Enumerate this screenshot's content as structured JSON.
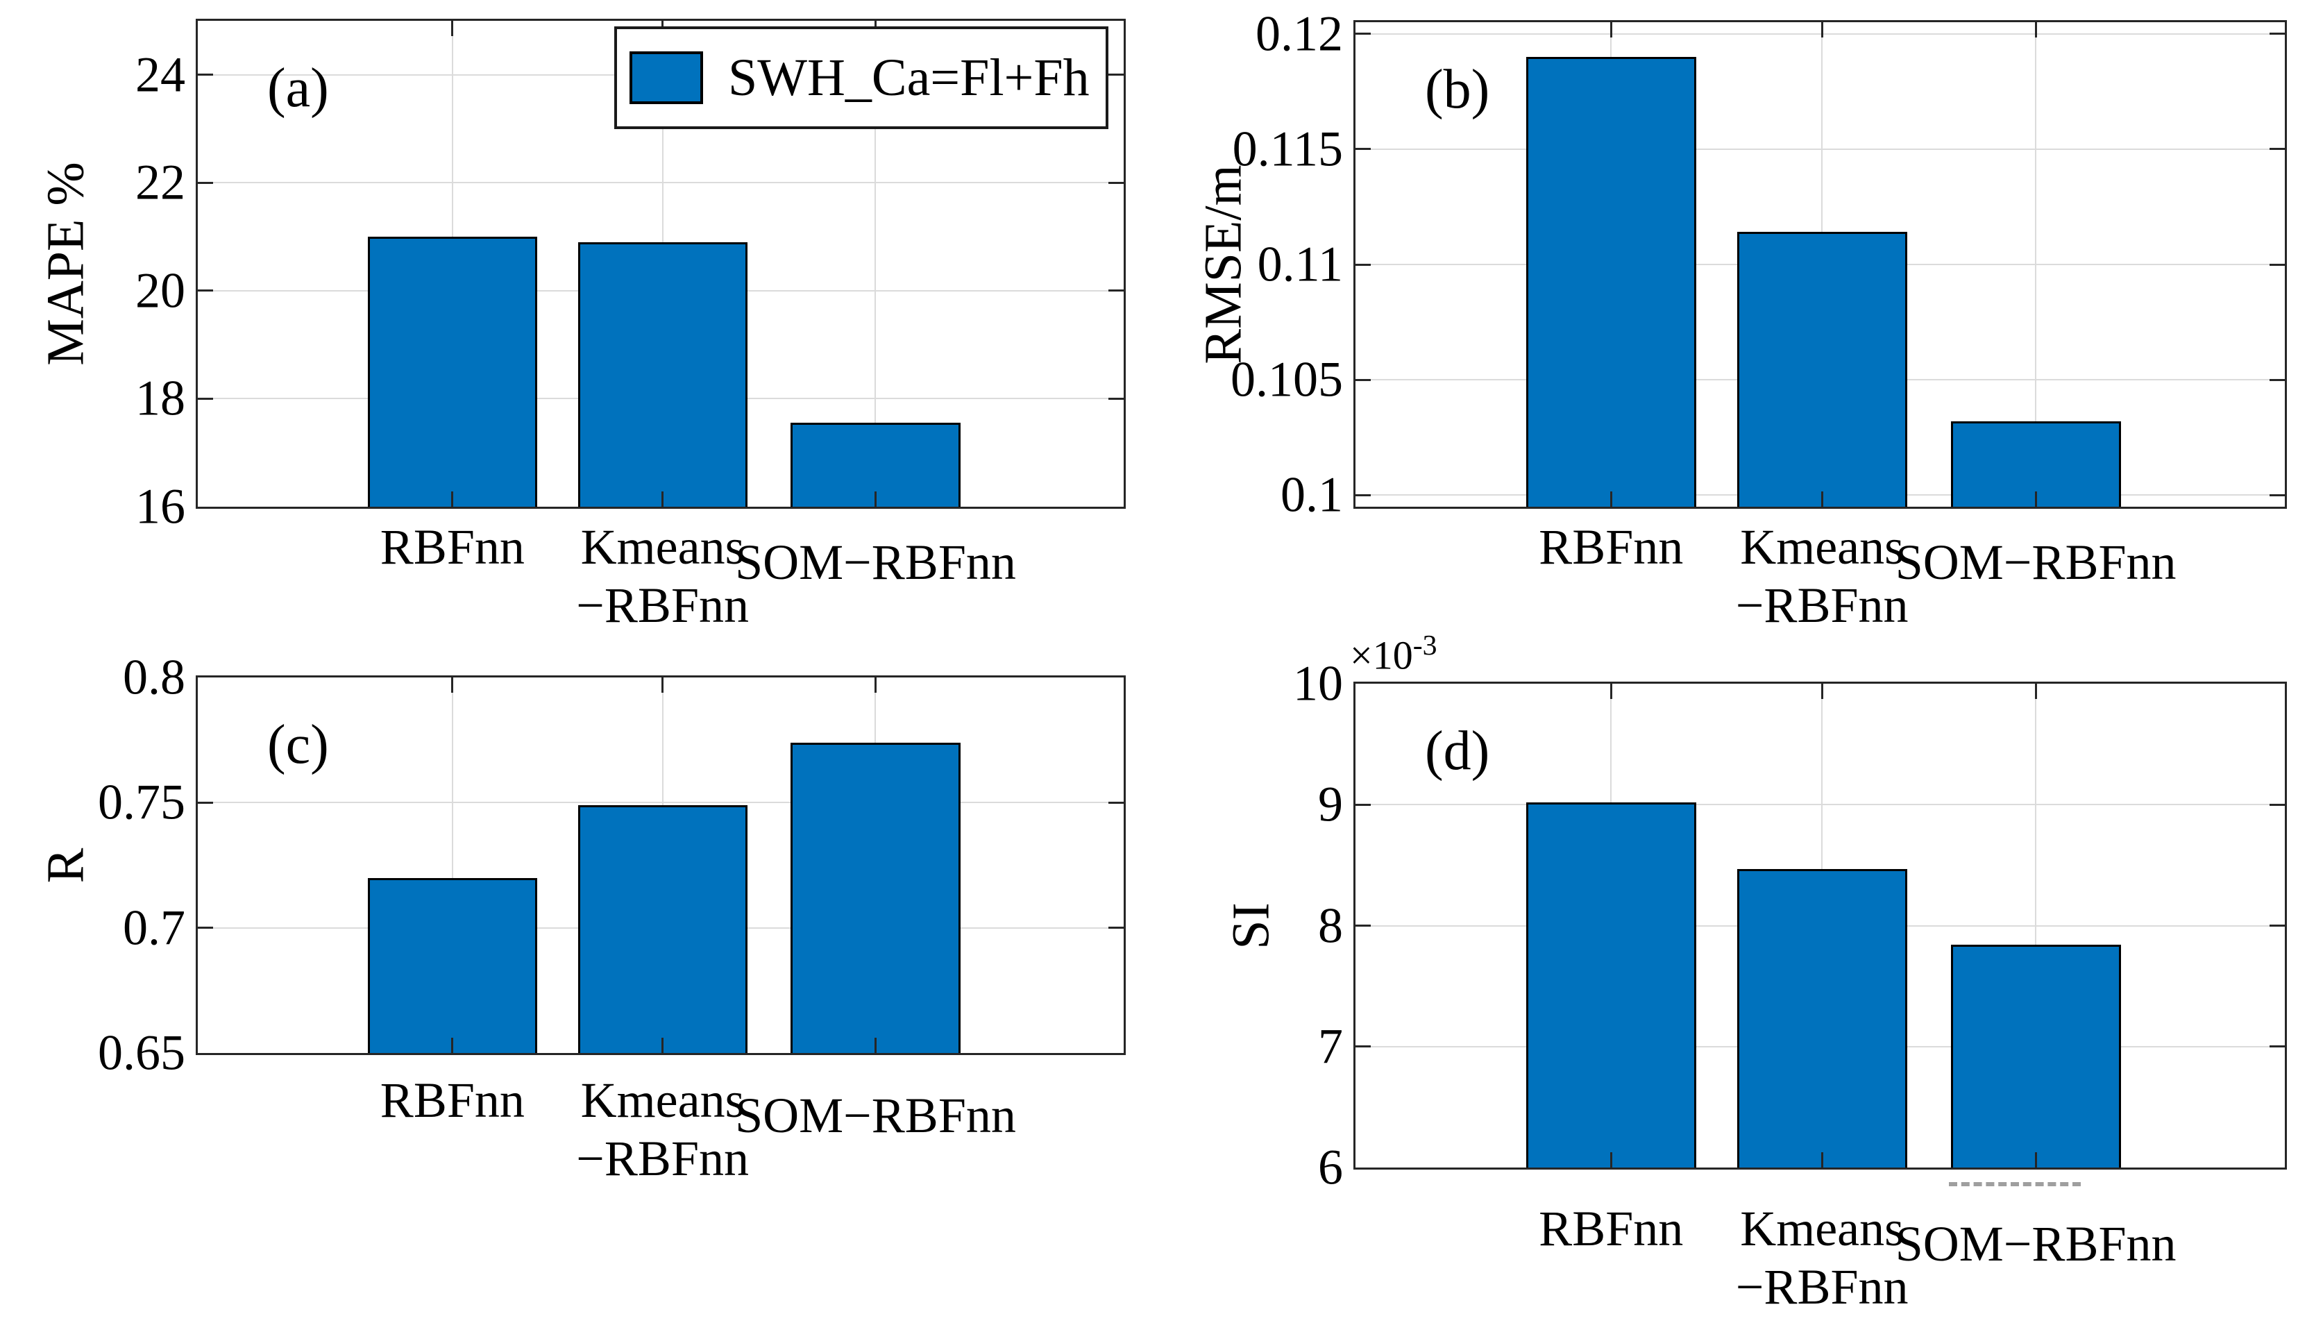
{
  "figure": {
    "background": "#ffffff",
    "bar_color": "#0072BD",
    "bar_edge_color": "#000000",
    "grid_color": "#DBDBDB",
    "axis_color": "#262626",
    "text_color": "#000000"
  },
  "legend": {
    "label": "SWH_Ca=Fl+Fh",
    "swatch_color": "#0072BD",
    "position": "top-right of panel (a)"
  },
  "categories": [
    "RBFnn",
    "Kmeans−RBFnn",
    "SOM−RBFnn"
  ],
  "category_tick_lines": [
    [
      "RBFnn"
    ],
    [
      "Kmeans",
      "−RBFnn"
    ],
    [
      "SOM−RBFnn"
    ]
  ],
  "chart_data": [
    {
      "type": "bar",
      "panel_label": "(a)",
      "ylabel": "MAPE %",
      "xlabel": "",
      "categories": [
        "RBFnn",
        "Kmeans−RBFnn",
        "SOM−RBFnn"
      ],
      "values": [
        21.0,
        20.9,
        17.56
      ],
      "ylim": [
        16,
        25
      ],
      "yticks": [
        {
          "value": 16,
          "label": "16"
        },
        {
          "value": 18,
          "label": "18"
        },
        {
          "value": 20,
          "label": "20"
        },
        {
          "value": 22,
          "label": "22"
        },
        {
          "value": 24,
          "label": "24"
        }
      ],
      "grid": true,
      "legend_entries": [
        "SWH_Ca=Fl+Fh"
      ]
    },
    {
      "type": "bar",
      "panel_label": "(b)",
      "ylabel": "RMSE/m",
      "xlabel": "",
      "categories": [
        "RBFnn",
        "Kmeans−RBFnn",
        "SOM−RBFnn"
      ],
      "values": [
        0.119,
        0.1114,
        0.1032
      ],
      "ylim": [
        0.0995,
        0.1205
      ],
      "yticks": [
        {
          "value": 0.1,
          "label": "0.1"
        },
        {
          "value": 0.105,
          "label": "0.105"
        },
        {
          "value": 0.11,
          "label": "0.11"
        },
        {
          "value": 0.115,
          "label": "0.115"
        },
        {
          "value": 0.12,
          "label": "0.12"
        }
      ],
      "grid": true
    },
    {
      "type": "bar",
      "panel_label": "(c)",
      "ylabel": "R",
      "xlabel": "",
      "categories": [
        "RBFnn",
        "Kmeans−RBFnn",
        "SOM−RBFnn"
      ],
      "values": [
        0.72,
        0.749,
        0.774
      ],
      "ylim": [
        0.65,
        0.8
      ],
      "yticks": [
        {
          "value": 0.65,
          "label": "0.65"
        },
        {
          "value": 0.7,
          "label": "0.7"
        },
        {
          "value": 0.75,
          "label": "0.75"
        },
        {
          "value": 0.8,
          "label": "0.8"
        }
      ],
      "grid": true
    },
    {
      "type": "bar",
      "panel_label": "(d)",
      "ylabel": "SI",
      "xlabel": "",
      "y_multiplier": {
        "base": "×10",
        "exponent": "-3"
      },
      "categories": [
        "RBFnn",
        "Kmeans−RBFnn",
        "SOM−RBFnn"
      ],
      "values": [
        9.02,
        8.47,
        7.84
      ],
      "ylim": [
        6,
        10
      ],
      "yticks": [
        {
          "value": 6,
          "label": "6"
        },
        {
          "value": 7,
          "label": "7"
        },
        {
          "value": 8,
          "label": "8"
        },
        {
          "value": 9,
          "label": "9"
        },
        {
          "value": 10,
          "label": "10"
        }
      ],
      "grid": true
    }
  ]
}
